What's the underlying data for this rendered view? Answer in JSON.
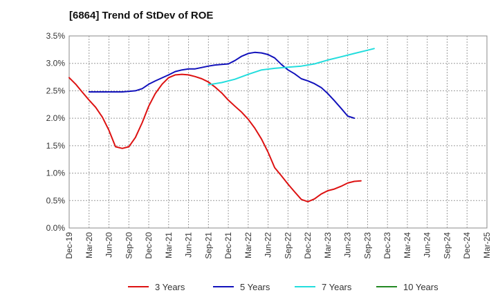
{
  "chart_data": {
    "type": "line",
    "title": "[6864]  Trend of StDev of ROE",
    "xlabel": "",
    "ylabel": "",
    "x": [
      "Dec-19",
      "Mar-20",
      "Jun-20",
      "Sep-20",
      "Dec-20",
      "Mar-21",
      "Jun-21",
      "Sep-21",
      "Dec-21",
      "Mar-22",
      "Jun-22",
      "Sep-22",
      "Dec-22",
      "Mar-23",
      "Jun-23",
      "Sep-23",
      "Dec-23",
      "Mar-24",
      "Jun-24",
      "Sep-24",
      "Dec-24",
      "Mar-25"
    ],
    "ylim": [
      0,
      3.5
    ],
    "yticks": [
      "0.0%",
      "0.5%",
      "1.0%",
      "1.5%",
      "2.0%",
      "2.5%",
      "3.0%",
      "3.5%"
    ],
    "grid": true,
    "legend_position": "bottom",
    "series": [
      {
        "name": "3 Years",
        "color": "#dd1111",
        "points": [
          [
            0,
            2.74
          ],
          [
            0.33,
            2.62
          ],
          [
            0.67,
            2.47
          ],
          [
            1,
            2.33
          ],
          [
            1.33,
            2.2
          ],
          [
            1.67,
            2.02
          ],
          [
            2,
            1.78
          ],
          [
            2.33,
            1.48
          ],
          [
            2.67,
            1.45
          ],
          [
            3,
            1.48
          ],
          [
            3.33,
            1.65
          ],
          [
            3.67,
            1.92
          ],
          [
            4,
            2.22
          ],
          [
            4.33,
            2.45
          ],
          [
            4.67,
            2.62
          ],
          [
            5,
            2.74
          ],
          [
            5.33,
            2.79
          ],
          [
            5.67,
            2.8
          ],
          [
            6,
            2.79
          ],
          [
            6.33,
            2.76
          ],
          [
            6.67,
            2.72
          ],
          [
            7,
            2.66
          ],
          [
            7.33,
            2.57
          ],
          [
            7.67,
            2.46
          ],
          [
            8,
            2.33
          ],
          [
            8.33,
            2.22
          ],
          [
            8.67,
            2.11
          ],
          [
            9,
            1.98
          ],
          [
            9.33,
            1.82
          ],
          [
            9.67,
            1.62
          ],
          [
            10,
            1.38
          ],
          [
            10.33,
            1.1
          ],
          [
            10.67,
            0.95
          ],
          [
            11,
            0.8
          ],
          [
            11.33,
            0.66
          ],
          [
            11.67,
            0.52
          ],
          [
            12,
            0.48
          ],
          [
            12.33,
            0.53
          ],
          [
            12.67,
            0.62
          ],
          [
            13,
            0.68
          ],
          [
            13.33,
            0.71
          ],
          [
            13.67,
            0.76
          ],
          [
            14,
            0.82
          ],
          [
            14.33,
            0.85
          ],
          [
            14.67,
            0.86
          ]
        ]
      },
      {
        "name": "5 Years",
        "color": "#1111bb",
        "points": [
          [
            1,
            2.48
          ],
          [
            1.67,
            2.48
          ],
          [
            2.67,
            2.48
          ],
          [
            3.33,
            2.5
          ],
          [
            3.67,
            2.54
          ],
          [
            4,
            2.62
          ],
          [
            4.33,
            2.68
          ],
          [
            5,
            2.79
          ],
          [
            5.33,
            2.85
          ],
          [
            5.67,
            2.88
          ],
          [
            6,
            2.9
          ],
          [
            6.33,
            2.9
          ],
          [
            7,
            2.95
          ],
          [
            7.33,
            2.97
          ],
          [
            7.67,
            2.98
          ],
          [
            8,
            2.99
          ],
          [
            8.33,
            3.05
          ],
          [
            8.67,
            3.13
          ],
          [
            9,
            3.18
          ],
          [
            9.33,
            3.2
          ],
          [
            9.67,
            3.19
          ],
          [
            10,
            3.16
          ],
          [
            10.33,
            3.1
          ],
          [
            10.67,
            2.98
          ],
          [
            11,
            2.88
          ],
          [
            11.33,
            2.81
          ],
          [
            11.67,
            2.72
          ],
          [
            12,
            2.68
          ],
          [
            12.33,
            2.63
          ],
          [
            12.67,
            2.56
          ],
          [
            13,
            2.45
          ],
          [
            13.33,
            2.32
          ],
          [
            13.67,
            2.18
          ],
          [
            14,
            2.04
          ],
          [
            14.33,
            2.0
          ]
        ]
      },
      {
        "name": "7 Years",
        "color": "#22dddd",
        "points": [
          [
            7,
            2.61
          ],
          [
            7.67,
            2.65
          ],
          [
            8.33,
            2.71
          ],
          [
            9,
            2.8
          ],
          [
            9.67,
            2.88
          ],
          [
            10.33,
            2.91
          ],
          [
            11,
            2.93
          ],
          [
            11.67,
            2.95
          ],
          [
            12.33,
            2.99
          ],
          [
            13,
            3.06
          ],
          [
            13.67,
            3.12
          ],
          [
            14.33,
            3.18
          ],
          [
            15,
            3.24
          ],
          [
            15.33,
            3.27
          ]
        ]
      },
      {
        "name": "10 Years",
        "color": "#228822",
        "points": []
      }
    ]
  }
}
